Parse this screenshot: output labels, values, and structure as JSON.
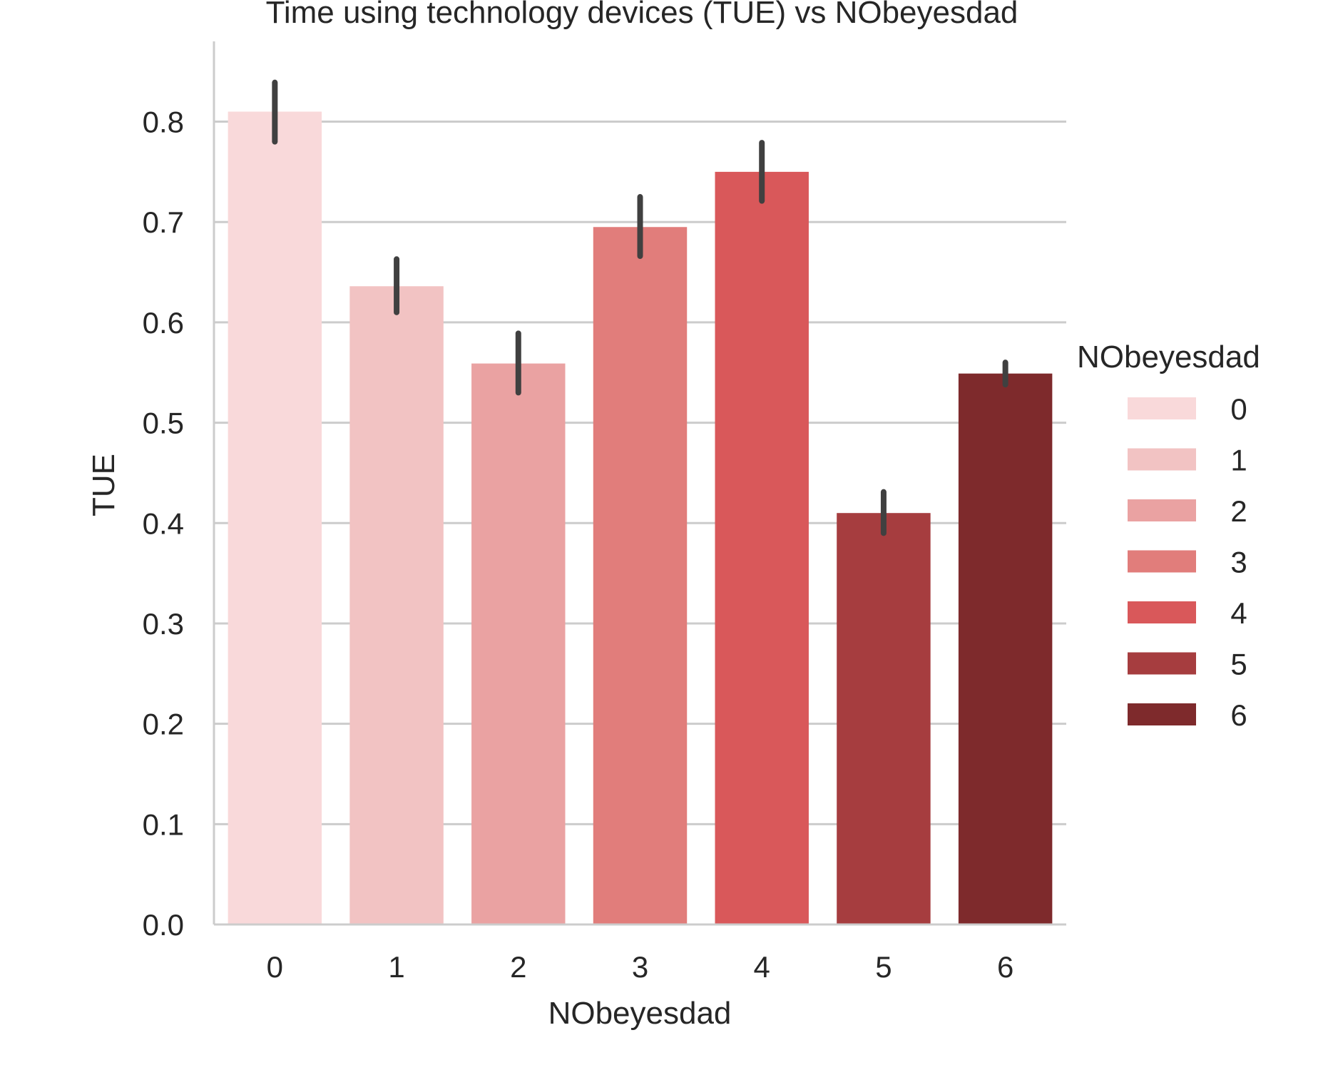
{
  "chart_data": {
    "type": "bar",
    "title": "Time using technology devices (TUE) vs NObeyesdad",
    "xlabel": "NObeyesdad",
    "ylabel": "TUE",
    "ylim": [
      0,
      0.88
    ],
    "yticks": [
      "0.0",
      "0.1",
      "0.2",
      "0.3",
      "0.4",
      "0.5",
      "0.6",
      "0.7",
      "0.8"
    ],
    "grid": "horizontal",
    "categories": [
      "0",
      "1",
      "2",
      "3",
      "4",
      "5",
      "6"
    ],
    "values": [
      0.81,
      0.636,
      0.559,
      0.695,
      0.75,
      0.41,
      0.549
    ],
    "error_low": [
      0.78,
      0.61,
      0.53,
      0.666,
      0.721,
      0.39,
      0.538
    ],
    "error_high": [
      0.839,
      0.663,
      0.589,
      0.725,
      0.779,
      0.431,
      0.56
    ],
    "colors": [
      "#f9d9da",
      "#f2c3c3",
      "#eaa2a2",
      "#e17d7b",
      "#d9585a",
      "#a63d3f",
      "#7e2a2c"
    ],
    "legend": {
      "title": "NObeyesdad",
      "position": "right",
      "entries": [
        "0",
        "1",
        "2",
        "3",
        "4",
        "5",
        "6"
      ]
    }
  }
}
